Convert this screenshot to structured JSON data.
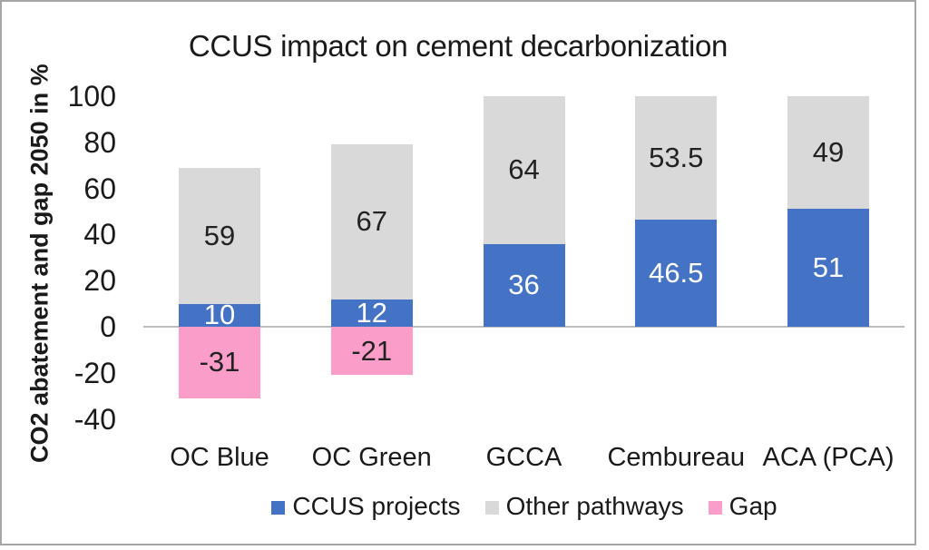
{
  "frame": {
    "border_color": "#a6a6a6",
    "background": "#ffffff"
  },
  "chart_data": {
    "type": "bar",
    "stacked": true,
    "title": "CCUS impact on cement decarbonization",
    "ylabel": "CO2 abatement and gap 2050 in %",
    "xlabel": "",
    "ylim": [
      -40,
      100
    ],
    "yticks": [
      100,
      80,
      60,
      40,
      20,
      0,
      -20,
      -40
    ],
    "grid": false,
    "legend_position": "bottom",
    "categories": [
      "OC Blue",
      "OC Green",
      "GCCA",
      "Cembureau",
      "ACA (PCA)"
    ],
    "series": [
      {
        "name": "CCUS projects",
        "color": "#4472C4",
        "label_color": "#FFFFFF",
        "values": [
          10,
          12,
          36,
          46.5,
          51
        ]
      },
      {
        "name": "Other pathways",
        "color": "#D9D9D9",
        "label_color": "#222222",
        "values": [
          59,
          67,
          64,
          53.5,
          49
        ]
      },
      {
        "name": "Gap",
        "color": "#FA9EC9",
        "label_color": "#222222",
        "values": [
          -31,
          -21,
          null,
          null,
          null
        ]
      }
    ],
    "axis_line_color": "#BDBDBD",
    "text_color": "#1A1A1A"
  }
}
